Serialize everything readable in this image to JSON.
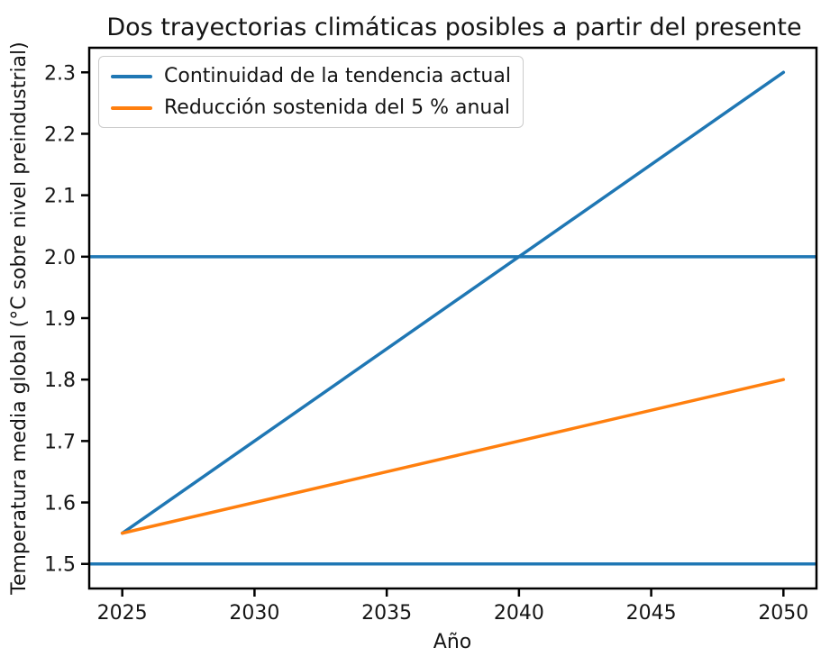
{
  "chart_data": {
    "type": "line",
    "title": "Dos trayectorias climáticas posibles a partir del presente",
    "xlabel": "Año",
    "ylabel": "Temperatura media global (°C sobre nivel preindustrial)",
    "xlim": [
      2023.75,
      2051.25
    ],
    "ylim": [
      1.46,
      2.34
    ],
    "x_ticks": [
      2025,
      2030,
      2035,
      2040,
      2045,
      2050
    ],
    "y_ticks": [
      1.5,
      1.6,
      1.7,
      1.8,
      1.9,
      2.0,
      2.1,
      2.2,
      2.3
    ],
    "grid": false,
    "legend_position": "upper-left",
    "series": [
      {
        "name": "Continuidad de la tendencia actual",
        "color": "#1f77b4",
        "points": [
          [
            2025,
            1.55
          ],
          [
            2050,
            2.3
          ]
        ]
      },
      {
        "name": "Reducción sostenida del 5 % anual",
        "color": "#ff7f0e",
        "points": [
          [
            2025,
            1.55
          ],
          [
            2050,
            1.8
          ]
        ]
      }
    ],
    "reference_lines": [
      {
        "y": 1.5,
        "color": "#1f77b4"
      },
      {
        "y": 2.0,
        "color": "#1f77b4"
      }
    ]
  },
  "legend": {
    "items": [
      {
        "label": "Continuidad de la tendencia actual",
        "color": "#1f77b4"
      },
      {
        "label": "Reducción sostenida del 5 % anual",
        "color": "#ff7f0e"
      }
    ]
  },
  "colors": {
    "blue": "#1f77b4",
    "orange": "#ff7f0e",
    "axes_frame": "#000000",
    "text": "#151515",
    "legend_border": "#cccccc"
  }
}
